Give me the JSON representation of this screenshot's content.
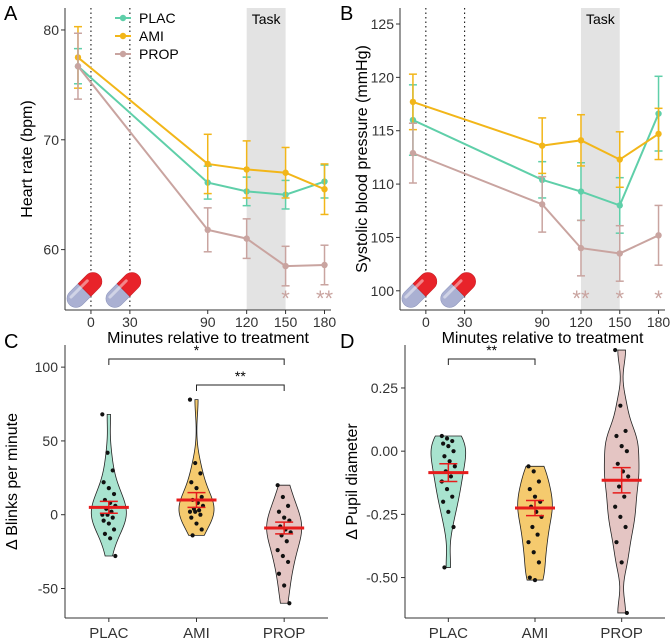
{
  "chart_data": [
    {
      "panel": "A",
      "type": "line",
      "title": "",
      "xlabel": "Minutes relative to treatment",
      "ylabel": "Heart rate (bpm)",
      "x": [
        -10,
        90,
        120,
        150,
        180
      ],
      "xticks": [
        0,
        30,
        90,
        120,
        150,
        180
      ],
      "xlim": [
        -20,
        185
      ],
      "ylim": [
        54.5,
        82
      ],
      "yticks": [
        60,
        70,
        80
      ],
      "task_label": "Task",
      "task_window": [
        120,
        150
      ],
      "dose_times": [
        0,
        30
      ],
      "legend": [
        "PLAC",
        "AMI",
        "PROP"
      ],
      "series": [
        {
          "name": "PLAC",
          "color": "#5fcfa9",
          "values": [
            76.7,
            66.1,
            65.3,
            65.0,
            66.2
          ],
          "err": [
            1.6,
            1.5,
            1.3,
            1.3,
            1.5
          ]
        },
        {
          "name": "AMI",
          "color": "#f2b619",
          "values": [
            77.5,
            67.8,
            67.3,
            67.0,
            65.5
          ],
          "err": [
            2.8,
            2.7,
            2.6,
            2.3,
            2.3
          ]
        },
        {
          "name": "PROP",
          "color": "#c9a4a0",
          "values": [
            76.7,
            61.8,
            61.0,
            58.5,
            58.6
          ],
          "err": [
            3.0,
            2.0,
            1.8,
            1.8,
            1.8
          ]
        }
      ],
      "significance": [
        {
          "x": 150,
          "label": "*"
        },
        {
          "x": 180,
          "label": "**"
        }
      ]
    },
    {
      "panel": "B",
      "type": "line",
      "title": "",
      "xlabel": "Minutes relative to treatment",
      "ylabel": "Systolic blood pressure (mmHg)",
      "x": [
        -10,
        90,
        120,
        150,
        180
      ],
      "xticks": [
        0,
        30,
        90,
        120,
        150,
        180
      ],
      "xlim": [
        -20,
        185
      ],
      "ylim": [
        98.2,
        126.5
      ],
      "yticks": [
        100,
        105,
        110,
        115,
        120,
        125
      ],
      "task_label": "Task",
      "task_window": [
        120,
        150
      ],
      "dose_times": [
        0,
        30
      ],
      "series": [
        {
          "name": "PLAC",
          "color": "#5fcfa9",
          "values": [
            116.0,
            110.4,
            109.3,
            108.0,
            116.6
          ],
          "err": [
            3.3,
            1.7,
            2.7,
            2.6,
            3.5
          ]
        },
        {
          "name": "AMI",
          "color": "#f2b619",
          "values": [
            117.7,
            113.6,
            114.1,
            112.3,
            114.7
          ],
          "err": [
            2.6,
            2.6,
            2.4,
            2.6,
            2.4
          ]
        },
        {
          "name": "PROP",
          "color": "#c9a4a0",
          "values": [
            112.9,
            108.1,
            104.0,
            103.5,
            105.2
          ],
          "err": [
            2.8,
            2.6,
            2.6,
            2.6,
            2.8
          ]
        }
      ],
      "significance": [
        {
          "x": 120,
          "label": "**"
        },
        {
          "x": 150,
          "label": "*"
        },
        {
          "x": 180,
          "label": "*"
        }
      ]
    },
    {
      "panel": "C",
      "type": "violin",
      "title": "",
      "xlabel": "",
      "ylabel": "Δ Blinks per minute",
      "categories": [
        "PLAC",
        "AMI",
        "PROP"
      ],
      "colors": [
        "#a8e3cf",
        "#f5ca6e",
        "#e4c5c3"
      ],
      "ylim": [
        -70,
        115
      ],
      "yticks": [
        -50,
        0,
        50,
        100
      ],
      "means": [
        5,
        10,
        -9
      ],
      "sem": [
        4,
        5,
        4
      ],
      "points": [
        [
          68,
          42,
          30,
          22,
          18,
          14,
          10,
          8,
          6,
          4,
          2,
          0,
          0,
          -2,
          -4,
          -6,
          -10,
          -13,
          -16,
          -28
        ],
        [
          78,
          35,
          28,
          22,
          18,
          12,
          10,
          8,
          6,
          4,
          3,
          2,
          2,
          0,
          -2,
          -6,
          -10,
          -14
        ],
        [
          20,
          12,
          6,
          2,
          -2,
          -4,
          -8,
          -10,
          -12,
          -14,
          -18,
          -24,
          -28,
          -32,
          -40,
          -48,
          -60
        ]
      ],
      "brackets": [
        {
          "from": "PLAC",
          "to": "PROP",
          "label": "*"
        },
        {
          "from": "AMI",
          "to": "PROP",
          "label": "**"
        }
      ]
    },
    {
      "panel": "D",
      "type": "violin",
      "title": "",
      "xlabel": "",
      "ylabel": "Δ Pupil diameter",
      "categories": [
        "PLAC",
        "AMI",
        "PROP"
      ],
      "colors": [
        "#a8e3cf",
        "#f5ca6e",
        "#e4c5c3"
      ],
      "ylim": [
        -0.66,
        0.42
      ],
      "yticks": [
        -0.5,
        -0.25,
        0.0,
        0.25
      ],
      "ytick_labels": [
        "-0.50",
        "-0.25",
        "0.00",
        "0.25"
      ],
      "means": [
        -0.085,
        -0.225,
        -0.115
      ],
      "sem": [
        0.035,
        0.03,
        0.05
      ],
      "points": [
        [
          0.06,
          0.05,
          0.04,
          0.03,
          0.02,
          0.0,
          -0.02,
          -0.04,
          -0.06,
          -0.08,
          -0.1,
          -0.12,
          -0.15,
          -0.18,
          -0.2,
          -0.24,
          -0.3,
          -0.46
        ],
        [
          -0.06,
          -0.08,
          -0.12,
          -0.15,
          -0.18,
          -0.2,
          -0.22,
          -0.24,
          -0.26,
          -0.3,
          -0.33,
          -0.36,
          -0.4,
          -0.44,
          -0.5,
          -0.51
        ],
        [
          0.4,
          0.18,
          0.08,
          0.06,
          0.02,
          0.0,
          -0.05,
          -0.08,
          -0.1,
          -0.14,
          -0.18,
          -0.22,
          -0.26,
          -0.3,
          -0.36,
          -0.44,
          -0.64
        ]
      ],
      "brackets": [
        {
          "from": "PLAC",
          "to": "AMI",
          "label": "**"
        }
      ]
    }
  ]
}
